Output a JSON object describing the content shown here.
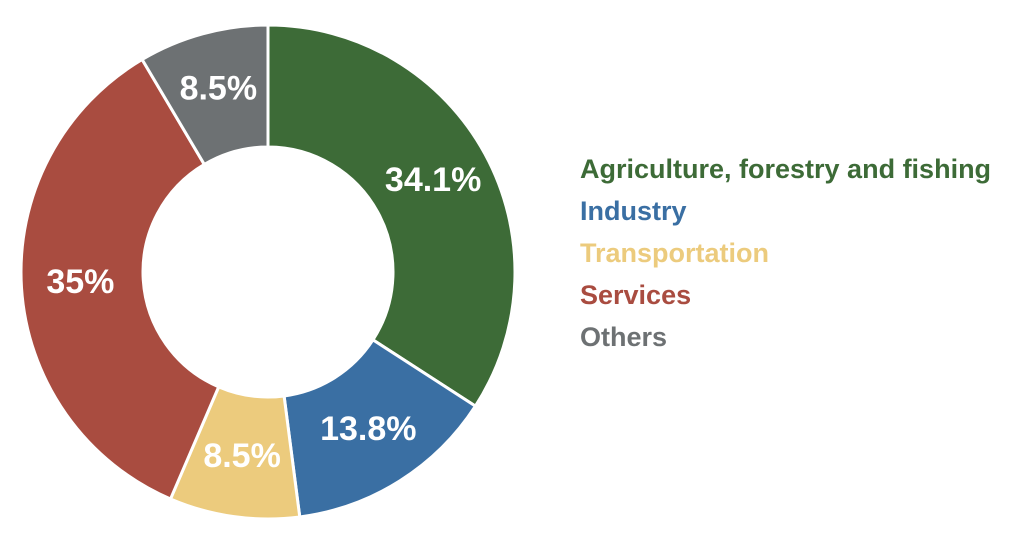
{
  "chart_data": {
    "type": "pie",
    "title": "",
    "donut": true,
    "legend_position": "right",
    "start_angle_deg": 0,
    "direction": "clockwise",
    "slices": [
      {
        "name": "Agriculture, forestry and fishing",
        "value": 34.1,
        "label": "34.1%",
        "color": "#3d6b37"
      },
      {
        "name": "Industry",
        "value": 13.8,
        "label": "13.8%",
        "color": "#3a6fa3"
      },
      {
        "name": "Transportation",
        "value": 8.5,
        "label": "8.5%",
        "color": "#eccb7d"
      },
      {
        "name": "Services",
        "value": 35,
        "label": "35%",
        "color": "#a94c40"
      },
      {
        "name": "Others",
        "value": 8.5,
        "label": "8.5%",
        "color": "#6d7173"
      }
    ]
  }
}
